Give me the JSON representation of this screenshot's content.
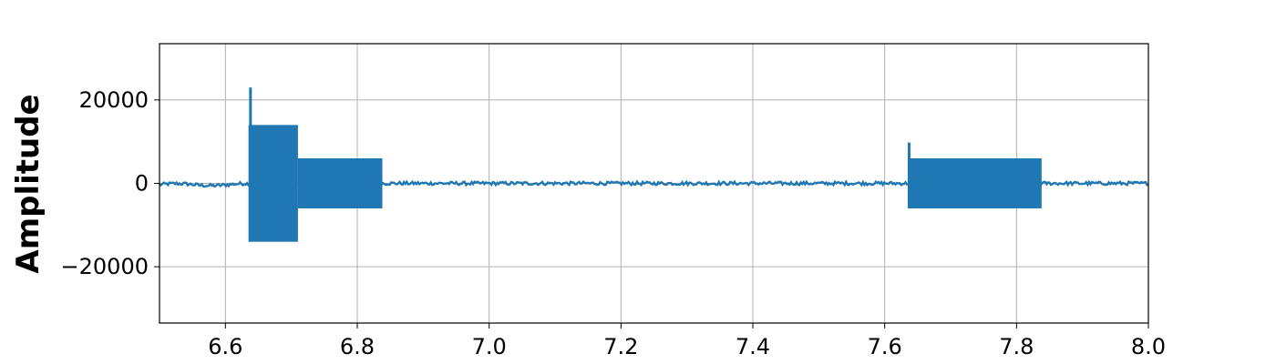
{
  "chart_data": {
    "type": "line",
    "title": "",
    "xlabel": "",
    "ylabel": "Amplitude",
    "xlim": [
      6.5,
      8.0
    ],
    "ylim": [
      -33500,
      33500
    ],
    "grid": true,
    "legend": "none",
    "series_color": "#1f77b4",
    "x_ticks": [
      6.6,
      6.8,
      7.0,
      7.2,
      7.4,
      7.6,
      7.8,
      8.0
    ],
    "x_tick_labels": [
      "6.6",
      "6.8",
      "7.0",
      "7.2",
      "7.4",
      "7.6",
      "7.8",
      "8.0"
    ],
    "y_ticks": [
      20000,
      0,
      -20000
    ],
    "y_tick_labels": [
      "20000",
      "0",
      "−20000"
    ],
    "series": [
      {
        "baseline_noise_amplitude": 800,
        "segments": [
          {
            "x_start": 6.635,
            "x_end": 6.71,
            "envelope_max": 14000,
            "envelope_min": -14000,
            "spike_x": 6.638,
            "spike_max": 23000,
            "spike_min": -14000
          },
          {
            "x_start": 6.71,
            "x_end": 6.838,
            "envelope_max": 6000,
            "envelope_min": -6000
          },
          {
            "x_start": 7.635,
            "x_end": 7.838,
            "envelope_max": 6000,
            "envelope_min": -6000,
            "spike_x": 7.637,
            "spike_max": 9800,
            "spike_min": -6000
          }
        ]
      }
    ]
  }
}
